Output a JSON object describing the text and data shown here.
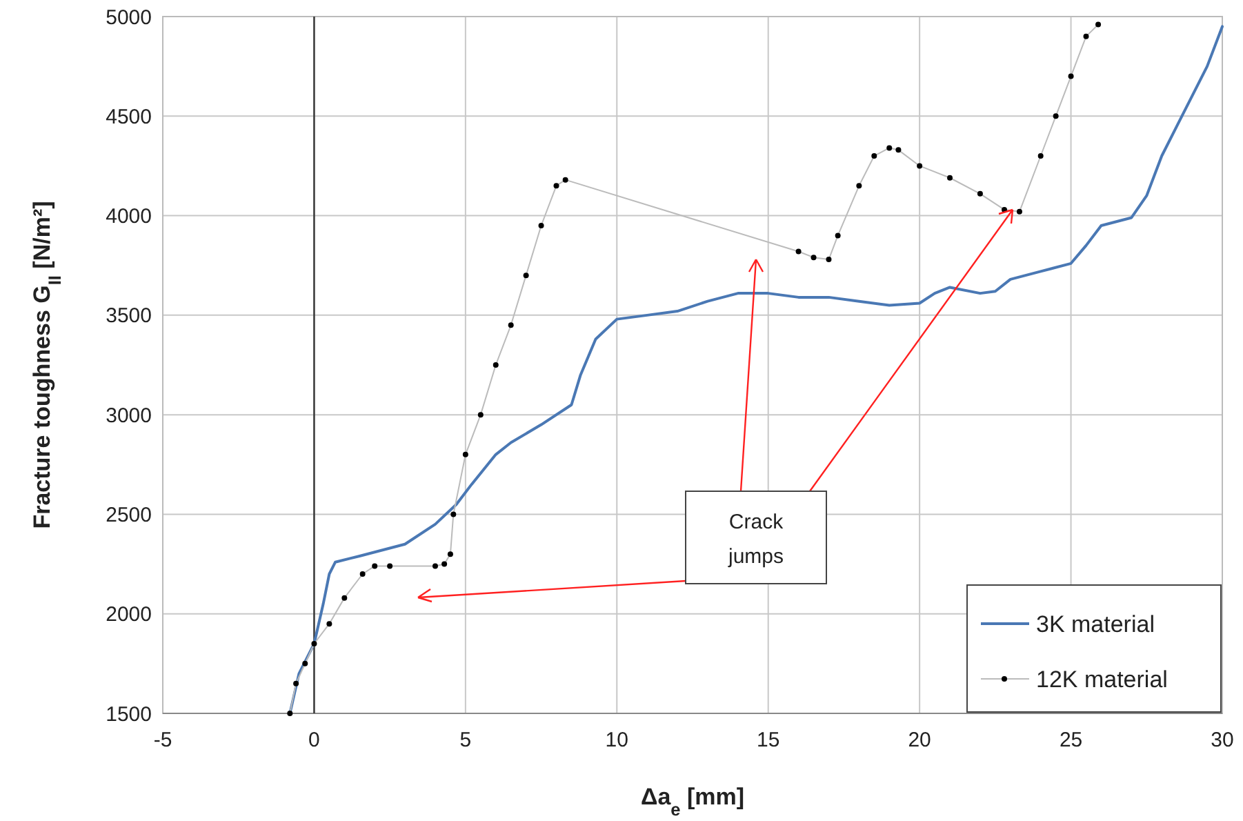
{
  "chart_data": {
    "type": "line",
    "xlabel": "Δa$_{e}$ [mm]",
    "ylabel": "Fracture toughness G$_{II}$ [N/m²]",
    "xlim": [
      -5,
      30
    ],
    "xticks": [
      -5,
      0,
      5,
      10,
      15,
      20,
      25,
      30
    ],
    "ylim": [
      1500,
      5000
    ],
    "yticks": [
      1500,
      2000,
      2500,
      3000,
      3500,
      4000,
      4500,
      5000
    ],
    "grid": true,
    "legend": "bottom right",
    "annotations": [
      "Crack jumps"
    ],
    "series": [
      {
        "name": "3K material",
        "color": "#4a78b4",
        "marker": "none",
        "x": [
          -0.8,
          -0.5,
          0,
          0.3,
          0.5,
          0.7,
          1.5,
          3,
          4,
          4.7,
          5.2,
          6,
          6.5,
          7.5,
          8.5,
          8.8,
          9.3,
          10,
          11,
          12,
          13,
          14,
          15,
          16,
          17,
          18,
          19,
          20,
          20.5,
          21,
          22,
          22.5,
          23,
          24,
          25,
          25.5,
          26,
          27,
          27.5,
          28,
          28.5,
          29,
          29.5,
          30
        ],
        "values": [
          1500,
          1700,
          1850,
          2050,
          2200,
          2260,
          2290,
          2350,
          2450,
          2550,
          2650,
          2800,
          2860,
          2950,
          3050,
          3200,
          3380,
          3480,
          3500,
          3520,
          3570,
          3610,
          3610,
          3590,
          3590,
          3570,
          3550,
          3560,
          3610,
          3640,
          3610,
          3620,
          3680,
          3720,
          3760,
          3850,
          3950,
          3990,
          4100,
          4300,
          4450,
          4600,
          4750,
          4950
        ]
      },
      {
        "name": "12K material",
        "color": "#000000",
        "marker": "circle",
        "x": [
          -0.8,
          -0.6,
          -0.3,
          0,
          0.5,
          1,
          1.6,
          2,
          2.5,
          4,
          4.3,
          4.5,
          4.6,
          5,
          5.5,
          6,
          6.5,
          7,
          7.5,
          8,
          8.3,
          16,
          16.5,
          17,
          17.3,
          18,
          18.5,
          19,
          19.3,
          20,
          21,
          22,
          22.8,
          23.3,
          24,
          24.5,
          25,
          25.5,
          25.9
        ],
        "values": [
          1500,
          1650,
          1750,
          1850,
          1950,
          2080,
          2200,
          2240,
          2240,
          2240,
          2250,
          2300,
          2500,
          2800,
          3000,
          3250,
          3450,
          3700,
          3950,
          4150,
          4180,
          3820,
          3790,
          3780,
          3900,
          4150,
          4300,
          4340,
          4330,
          4250,
          4190,
          4110,
          4030,
          4020,
          4300,
          4500,
          4700,
          4900,
          4960
        ]
      }
    ]
  }
}
